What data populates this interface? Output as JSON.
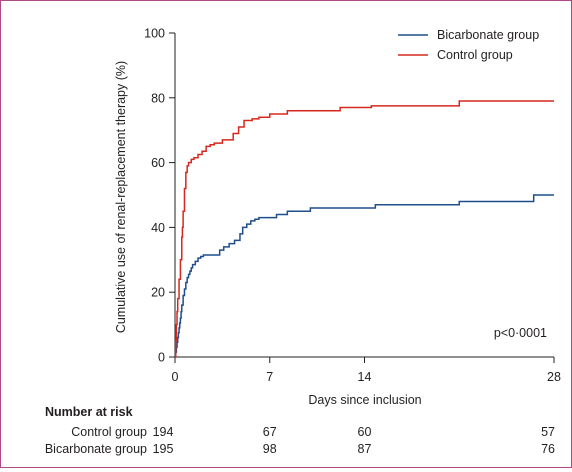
{
  "chart_data": {
    "type": "line",
    "chart_kind": "kaplan-meier cumulative incidence (step)",
    "xlabel": "Days since inclusion",
    "ylabel": "Cumulative use of renal-replacement therapy (%)",
    "xlim": [
      0,
      28
    ],
    "ylim": [
      0,
      100
    ],
    "x_ticks": [
      0,
      7,
      14,
      28
    ],
    "y_ticks": [
      0,
      20,
      40,
      60,
      80,
      100
    ],
    "grid": false,
    "legend_position": "top-right",
    "annotation": "p<0·0001",
    "series": [
      {
        "name": "Bicarbonate group",
        "color": "#1f4e8c",
        "x": [
          0,
          0.05,
          0.1,
          0.15,
          0.2,
          0.25,
          0.3,
          0.35,
          0.4,
          0.45,
          0.5,
          0.6,
          0.7,
          0.8,
          0.9,
          1.0,
          1.1,
          1.2,
          1.3,
          1.5,
          1.7,
          1.9,
          2.1,
          2.4,
          3.3,
          3.6,
          4.0,
          4.4,
          4.8,
          5.0,
          5.3,
          5.6,
          5.9,
          6.2,
          6.6,
          7.5,
          8.3,
          10.0,
          14.0,
          14.8,
          21.0,
          26.5,
          28.0
        ],
        "values": [
          0,
          1.5,
          3,
          4.5,
          6,
          7.5,
          9,
          10.5,
          12,
          14,
          16,
          19,
          21,
          23,
          24.5,
          25.5,
          26.5,
          27.5,
          28.5,
          29.5,
          30.5,
          31,
          31.5,
          31.5,
          33,
          34,
          35,
          36,
          38,
          40,
          41,
          42,
          42.5,
          43,
          43,
          44,
          45,
          46,
          46,
          47,
          48,
          50,
          50
        ]
      },
      {
        "name": "Control group",
        "color": "#d7281f",
        "x": [
          0,
          0.05,
          0.1,
          0.15,
          0.2,
          0.3,
          0.4,
          0.5,
          0.55,
          0.6,
          0.7,
          0.8,
          0.9,
          1.0,
          1.2,
          1.4,
          1.7,
          2.0,
          2.3,
          2.6,
          2.9,
          3.5,
          4.3,
          4.7,
          5.1,
          5.7,
          6.2,
          6.6,
          7.0,
          8.3,
          12.2,
          14.5,
          21.0,
          28.0
        ],
        "values": [
          0,
          5,
          10,
          14,
          18,
          24,
          30,
          37,
          40,
          45,
          52,
          57,
          59,
          60,
          61,
          61.5,
          62.5,
          63.5,
          65,
          65.5,
          66,
          67,
          69,
          71,
          73,
          73.5,
          74,
          74,
          75,
          76,
          77,
          77.5,
          79,
          79
        ]
      }
    ],
    "risk_table": {
      "title": "Number at risk",
      "rows": [
        {
          "label": "Control group",
          "values": [
            "194",
            "67",
            "60",
            "57"
          ]
        },
        {
          "label": "Bicarbonate group",
          "values": [
            "195",
            "98",
            "87",
            "76"
          ]
        }
      ]
    }
  },
  "colors": {
    "frame": "#b04a86",
    "axis": "#231f20",
    "text": "#231f20"
  }
}
